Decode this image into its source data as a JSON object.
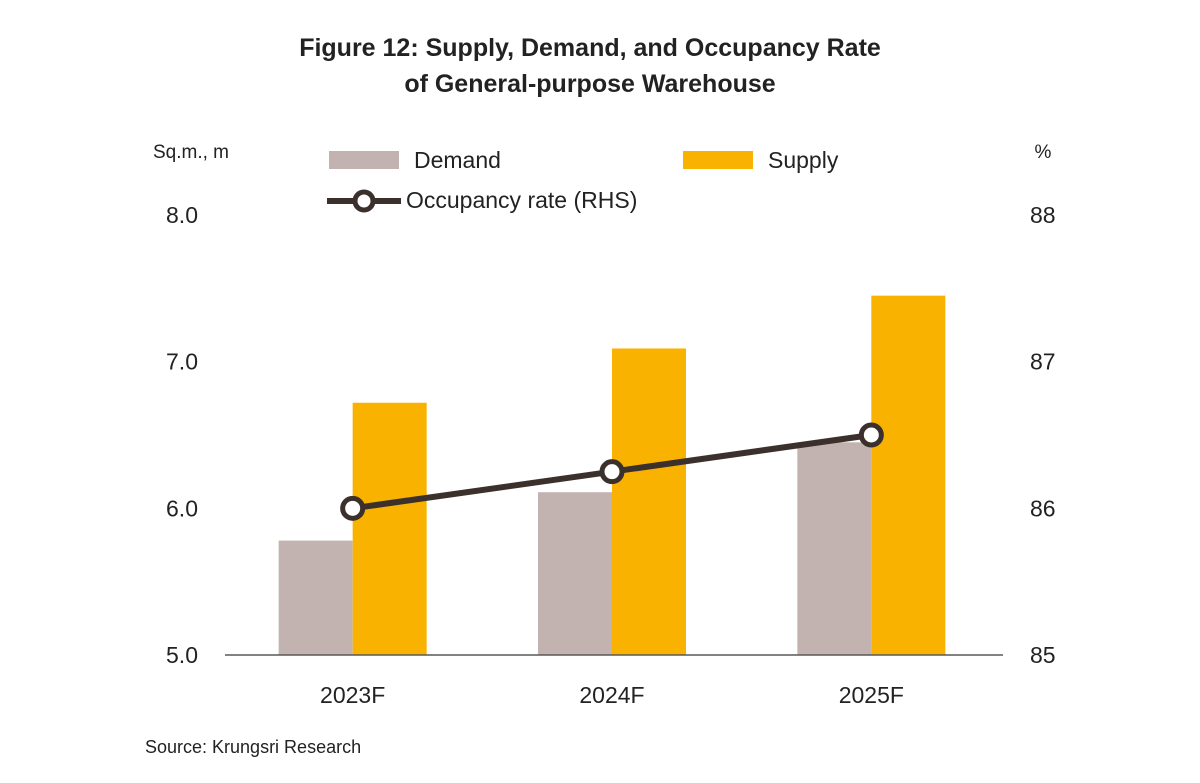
{
  "title_line1": "Figure 12: Supply, Demand, and Occupancy Rate",
  "title_line2": "of General-purpose Warehouse",
  "source": "Source: Krungsri Research",
  "colors": {
    "demand": "#c2b3b0",
    "supply": "#f9b200",
    "occupancy": "#3b302c",
    "axis": "#595959"
  },
  "chart_data": {
    "type": "bar",
    "categories": [
      "2023F",
      "2024F",
      "2025F"
    ],
    "series": [
      {
        "name": "Demand",
        "type": "bar",
        "axis": "left",
        "values": [
          5.78,
          6.11,
          6.45
        ]
      },
      {
        "name": "Supply",
        "type": "bar",
        "axis": "left",
        "values": [
          6.72,
          7.09,
          7.45
        ]
      },
      {
        "name": "Occupancy rate (RHS)",
        "type": "line",
        "axis": "right",
        "values": [
          86.0,
          86.25,
          86.5
        ]
      }
    ],
    "ylabel": "Sq.m., m",
    "y2label": "%",
    "ylim": [
      5.0,
      8.0
    ],
    "y2lim": [
      85,
      88
    ],
    "yticks": [
      "5.0",
      "6.0",
      "7.0",
      "8.0"
    ],
    "y2ticks": [
      "85",
      "86",
      "87",
      "88"
    ],
    "grid": false,
    "legend": "top"
  }
}
